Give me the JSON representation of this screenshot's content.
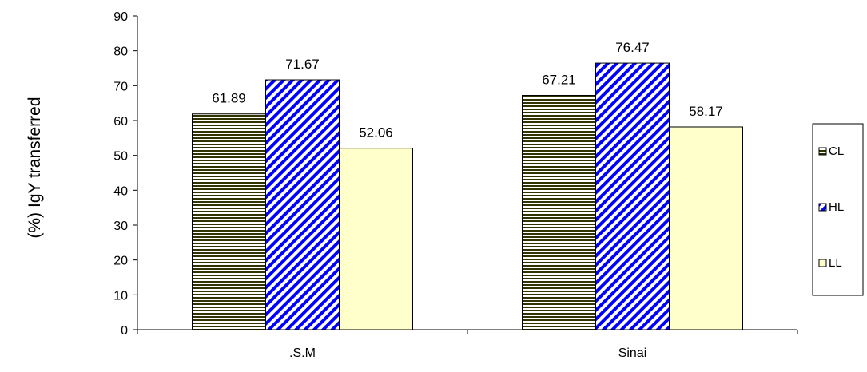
{
  "chart_data": {
    "type": "bar",
    "title": "",
    "xlabel": "",
    "ylabel": "(%) IgY transferred",
    "categories": [
      ".S.M",
      "Sinai"
    ],
    "series": [
      {
        "name": "CL",
        "values": [
          61.89,
          67.21
        ],
        "pattern": "horizontal-lines",
        "color": "#333300"
      },
      {
        "name": "HL",
        "values": [
          71.67,
          76.47
        ],
        "pattern": "diagonal-lines",
        "color": "#0000ff"
      },
      {
        "name": "LL",
        "values": [
          52.06,
          58.17
        ],
        "pattern": "solid",
        "color": "#ffffcc"
      }
    ],
    "data_labels": [
      [
        "61.89",
        "67.21"
      ],
      [
        "71.67",
        "76.47"
      ],
      [
        "52.06",
        "58.17"
      ]
    ],
    "ylim": [
      0,
      90
    ],
    "yticks": [
      0,
      10,
      20,
      30,
      40,
      50,
      60,
      70,
      80,
      90
    ],
    "grid": false,
    "legend_position": "right"
  }
}
